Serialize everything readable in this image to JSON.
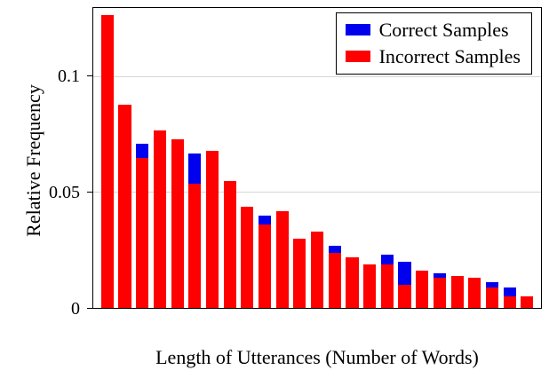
{
  "chart_data": {
    "type": "bar",
    "bar_mode": "overlay-red-in-front",
    "title": "",
    "xlabel": "Length of Utterances (Number of Words)",
    "ylabel": "Relative Frequency",
    "ylim": [
      0,
      0.13
    ],
    "y_ticks": [
      {
        "value": 0,
        "label": "0"
      },
      {
        "value": 0.05,
        "label": "0.05"
      },
      {
        "value": 0.1,
        "label": "0.1"
      }
    ],
    "gridlines": [
      0.05,
      0.1
    ],
    "x_tick_labels_visible": false,
    "legend_position": "top-right",
    "series": [
      {
        "name": "Correct Samples",
        "color": "#0000ee",
        "values": [
          0.127,
          0.088,
          0.071,
          0.077,
          0.073,
          0.067,
          0.068,
          0.055,
          0.044,
          0.04,
          0.042,
          0.03,
          0.033,
          0.027,
          0.022,
          0.019,
          0.023,
          0.02,
          0.016,
          0.015,
          0.014,
          0.013,
          0.011,
          0.009,
          0.005
        ]
      },
      {
        "name": "Incorrect Samples",
        "color": "#fe0000",
        "values": [
          0.127,
          0.088,
          0.065,
          0.077,
          0.073,
          0.054,
          0.068,
          0.055,
          0.044,
          0.036,
          0.042,
          0.03,
          0.033,
          0.024,
          0.022,
          0.019,
          0.019,
          0.01,
          0.016,
          0.013,
          0.014,
          0.013,
          0.009,
          0.005,
          0.005
        ]
      }
    ]
  }
}
